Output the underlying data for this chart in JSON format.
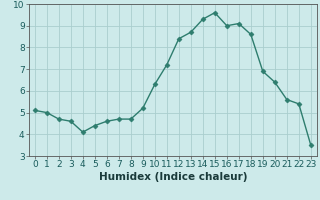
{
  "x": [
    0,
    1,
    2,
    3,
    4,
    5,
    6,
    7,
    8,
    9,
    10,
    11,
    12,
    13,
    14,
    15,
    16,
    17,
    18,
    19,
    20,
    21,
    22,
    23
  ],
  "y": [
    5.1,
    5.0,
    4.7,
    4.6,
    4.1,
    4.4,
    4.6,
    4.7,
    4.7,
    5.2,
    6.3,
    7.2,
    8.4,
    8.7,
    9.3,
    9.6,
    9.0,
    9.1,
    8.6,
    6.9,
    6.4,
    5.6,
    5.4,
    3.5
  ],
  "line_color": "#2e7d6e",
  "marker": "D",
  "marker_size": 2.5,
  "bg_color": "#cdeaea",
  "grid_color": "#aacece",
  "xlabel": "Humidex (Indice chaleur)",
  "ylim": [
    3,
    10
  ],
  "xlim": [
    -0.5,
    23.5
  ],
  "yticks": [
    3,
    4,
    5,
    6,
    7,
    8,
    9,
    10
  ],
  "xticks": [
    0,
    1,
    2,
    3,
    4,
    5,
    6,
    7,
    8,
    9,
    10,
    11,
    12,
    13,
    14,
    15,
    16,
    17,
    18,
    19,
    20,
    21,
    22,
    23
  ],
  "tick_fontsize": 6.5,
  "xlabel_fontsize": 7.5,
  "linewidth": 1.0
}
